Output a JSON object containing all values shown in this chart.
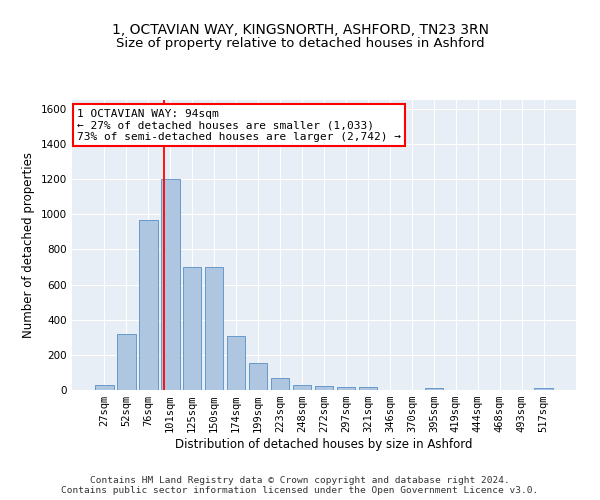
{
  "title": "1, OCTAVIAN WAY, KINGSNORTH, ASHFORD, TN23 3RN",
  "subtitle": "Size of property relative to detached houses in Ashford",
  "xlabel": "Distribution of detached houses by size in Ashford",
  "ylabel": "Number of detached properties",
  "footer_line1": "Contains HM Land Registry data © Crown copyright and database right 2024.",
  "footer_line2": "Contains public sector information licensed under the Open Government Licence v3.0.",
  "categories": [
    "27sqm",
    "52sqm",
    "76sqm",
    "101sqm",
    "125sqm",
    "150sqm",
    "174sqm",
    "199sqm",
    "223sqm",
    "248sqm",
    "272sqm",
    "297sqm",
    "321sqm",
    "346sqm",
    "370sqm",
    "395sqm",
    "419sqm",
    "444sqm",
    "468sqm",
    "493sqm",
    "517sqm"
  ],
  "values": [
    30,
    320,
    970,
    1200,
    700,
    700,
    305,
    155,
    70,
    30,
    20,
    15,
    15,
    0,
    0,
    12,
    0,
    0,
    0,
    0,
    12
  ],
  "bar_color": "#aec6df",
  "bar_edge_color": "#6699cc",
  "annotation_text": "1 OCTAVIAN WAY: 94sqm\n← 27% of detached houses are smaller (1,033)\n73% of semi-detached houses are larger (2,742) →",
  "annotation_box_color": "white",
  "annotation_box_edge": "red",
  "vline_color": "red",
  "vline_pos": 2.72,
  "ylim": [
    0,
    1650
  ],
  "yticks": [
    0,
    200,
    400,
    600,
    800,
    1000,
    1200,
    1400,
    1600
  ],
  "background_color": "#e8eef5",
  "grid_color": "white",
  "title_fontsize": 10,
  "subtitle_fontsize": 9.5,
  "axis_label_fontsize": 8.5,
  "tick_fontsize": 7.5,
  "annotation_fontsize": 8,
  "footer_fontsize": 6.8
}
